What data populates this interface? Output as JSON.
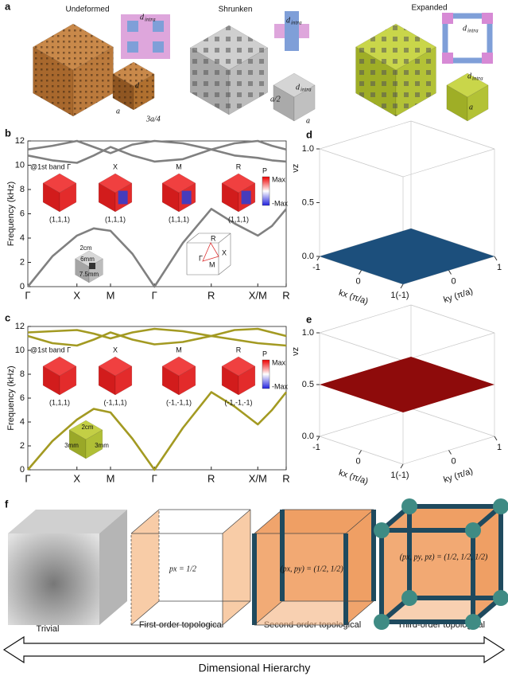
{
  "panel_a": {
    "panel_label": "a",
    "parts": [
      {
        "title": "Undeformed",
        "inset_label": {
          "main": "d",
          "sub": "intra"
        },
        "dims": [
          "d",
          "a",
          "3a/4"
        ]
      },
      {
        "title": "Shrunken",
        "inset_label": {
          "main": "d",
          "sub": "intra"
        },
        "cube_label": {
          "main": "d",
          "sub": "intra"
        },
        "dims": [
          "a/2",
          "a"
        ]
      },
      {
        "title": "Expanded",
        "inset_label": {
          "main": "d",
          "sub": "intra"
        },
        "cube_label": {
          "main": "d",
          "sub": "intra"
        },
        "dims": [
          "a"
        ]
      }
    ]
  },
  "chart_data": [
    {
      "type": "line",
      "panel_label": "b",
      "ylabel": "Frequency (kHz)",
      "x": [
        0,
        0.095,
        0.19,
        0.255,
        0.32,
        0.405,
        0.49,
        0.6,
        0.71,
        0.8,
        0.89,
        0.945,
        1
      ],
      "xlim": [
        0,
        1
      ],
      "xticks": [
        {
          "value": 0,
          "label": "Γ"
        },
        {
          "value": 0.19,
          "label": "X"
        },
        {
          "value": 0.32,
          "label": "M"
        },
        {
          "value": 0.49,
          "label": "Γ"
        },
        {
          "value": 0.71,
          "label": "R"
        },
        {
          "value": 0.89,
          "label": "X/M"
        },
        {
          "value": 1,
          "label": "R"
        }
      ],
      "ylim": [
        0,
        12
      ],
      "yticks": [
        0,
        2,
        4,
        6,
        8,
        10,
        12
      ],
      "series": [
        {
          "color": "#808080",
          "values": [
            0,
            2.5,
            4.2,
            4.8,
            4.6,
            2.7,
            0,
            3.6,
            6.4,
            5.2,
            4.2,
            5,
            6.4
          ]
        },
        {
          "color": "#808080",
          "values": [
            11.3,
            11.6,
            12,
            11.5,
            11,
            11.7,
            12,
            11.8,
            11.3,
            11.8,
            12,
            11.6,
            11.3
          ]
        },
        {
          "color": "#808080",
          "values": [
            10.8,
            10.4,
            10.2,
            10.8,
            11.5,
            10.8,
            10.3,
            10.5,
            11.3,
            10.8,
            10.6,
            10.4,
            10.3
          ]
        }
      ],
      "band_label": "@1st band Γ",
      "mode_labels": [
        "X",
        "M",
        "R"
      ],
      "mode_polarizations": [
        "(1,1,1)",
        "(1,1,1)",
        "(1,1,1)",
        "(1,1,1)"
      ],
      "colorbar": {
        "title": "P",
        "max": "Max",
        "min": "-Max"
      },
      "sample_dims": [
        "2cm",
        "6mm",
        "7.5mm"
      ],
      "bz_labels": [
        "R",
        "M",
        "X",
        "Γ"
      ]
    },
    {
      "type": "line",
      "panel_label": "c",
      "ylabel": "Frequency (kHz)",
      "x": [
        0,
        0.095,
        0.19,
        0.255,
        0.32,
        0.405,
        0.49,
        0.6,
        0.71,
        0.8,
        0.89,
        0.945,
        1
      ],
      "xlim": [
        0,
        1
      ],
      "xticks": [
        {
          "value": 0,
          "label": "Γ"
        },
        {
          "value": 0.19,
          "label": "X"
        },
        {
          "value": 0.32,
          "label": "M"
        },
        {
          "value": 0.49,
          "label": "Γ"
        },
        {
          "value": 0.71,
          "label": "R"
        },
        {
          "value": 0.89,
          "label": "X/M"
        },
        {
          "value": 1,
          "label": "R"
        }
      ],
      "ylim": [
        0,
        12
      ],
      "yticks": [
        0,
        2,
        4,
        6,
        8,
        10,
        12
      ],
      "series": [
        {
          "color": "#a39a22",
          "values": [
            0,
            2.4,
            4.2,
            5.1,
            4.8,
            2.6,
            0,
            3.5,
            6.5,
            5.3,
            3.8,
            5,
            6.5
          ]
        },
        {
          "color": "#a39a22",
          "values": [
            11.5,
            11.6,
            11.7,
            11.4,
            11,
            11.5,
            11.8,
            11.6,
            11.2,
            11.7,
            11.8,
            11.5,
            11.2
          ]
        },
        {
          "color": "#a39a22",
          "values": [
            11.2,
            10.6,
            10.4,
            10.9,
            11.5,
            10.9,
            10.5,
            10.7,
            11.2,
            10.9,
            10.6,
            10.5,
            10.4
          ]
        }
      ],
      "band_label": "@1st band Γ",
      "mode_labels": [
        "X",
        "M",
        "R"
      ],
      "mode_polarizations": [
        "(1,1,1)",
        "(-1,1,1)",
        "(-1,-1,1)",
        "(-1,-1,-1)"
      ],
      "colorbar": {
        "title": "P",
        "max": "Max",
        "min": "-Max"
      },
      "sample_dims": [
        "2cm",
        "3mm",
        "3mm"
      ]
    },
    {
      "type": "plane3d",
      "panel_label": "d",
      "xlabel": "kx (π/a)",
      "ylabel": "ky (π/a)",
      "zlabel": "νz",
      "xlim": [
        -1,
        1
      ],
      "ylim": [
        -1,
        1
      ],
      "zlim": [
        0,
        1
      ],
      "xticks": [
        -1,
        0,
        {
          "value": 1,
          "label": "1(-1)"
        }
      ],
      "yticks": [
        0,
        1
      ],
      "zticks": [
        {
          "value": 0,
          "label": "0.0"
        },
        {
          "value": 0.5,
          "label": "0.5"
        },
        {
          "value": 1,
          "label": "1.0"
        }
      ],
      "values": [
        0
      ],
      "color": "#1c4f7c"
    },
    {
      "type": "plane3d",
      "panel_label": "e",
      "xlabel": "kx (π/a)",
      "ylabel": "ky (π/a)",
      "zlabel": "νz",
      "xlim": [
        -1,
        1
      ],
      "ylim": [
        -1,
        1
      ],
      "zlim": [
        0,
        1
      ],
      "xticks": [
        -1,
        0,
        {
          "value": 1,
          "label": "1(-1)"
        }
      ],
      "yticks": [
        0,
        1
      ],
      "zticks": [
        {
          "value": 0,
          "label": "0.0"
        },
        {
          "value": 0.5,
          "label": "0.5"
        },
        {
          "value": 1,
          "label": "1.0"
        }
      ],
      "values": [
        0.5
      ],
      "color": "#8e0b0b"
    }
  ],
  "panel_f": {
    "panel_label": "f",
    "labels": [
      "Trivial",
      "First-order topological",
      "Second-order topological",
      "Third-order topological"
    ],
    "equations": [
      "px = 1/2",
      "(px, py) = (1/2, 1/2)",
      "(px, py, pz) = (1/2, 1/2, 1/2)"
    ],
    "axis_label": "Dimensional Hierarchy"
  }
}
